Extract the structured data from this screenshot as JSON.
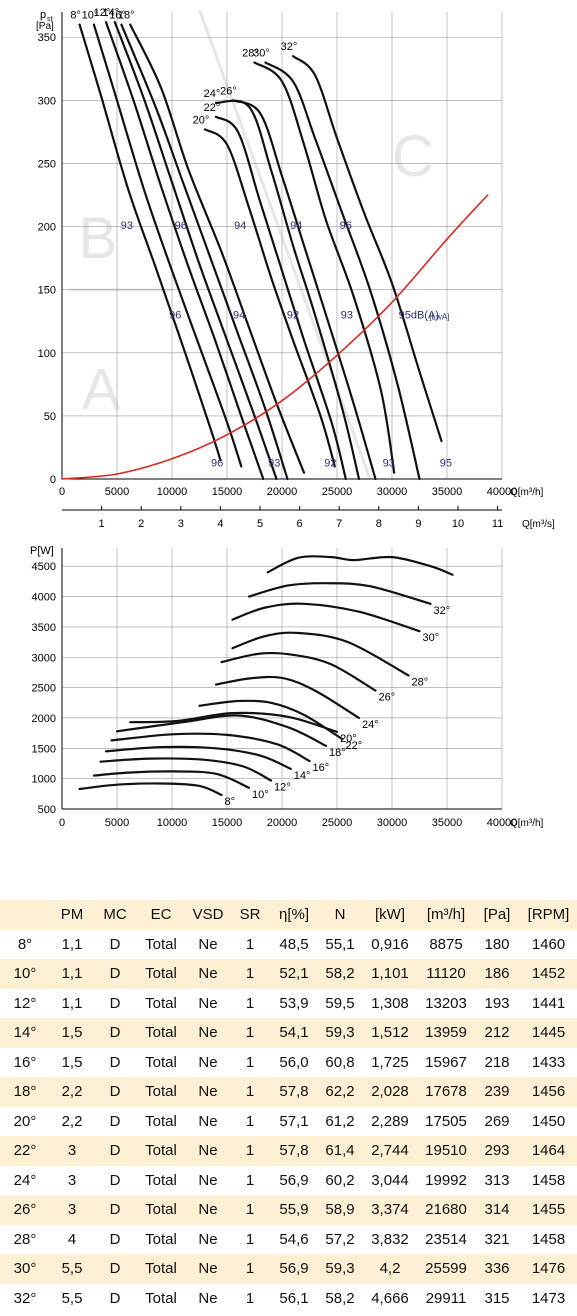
{
  "chart_data": [
    {
      "type": "line",
      "ylabel": "pst [Pa]",
      "ylabel_main": "p",
      "ylabel_sub": "st",
      "ylabel_unit": "[Pa]",
      "xlabel": "Q[m³/h]",
      "xlabel2": "Q[m³/s]",
      "xlim": [
        0,
        40000
      ],
      "ylim": [
        0,
        370
      ],
      "xticks": [
        0,
        5000,
        10000,
        15000,
        20000,
        25000,
        30000,
        35000,
        40000
      ],
      "yticks": [
        0,
        50,
        100,
        150,
        200,
        250,
        300,
        350
      ],
      "xticks2": [
        1,
        2,
        3,
        4,
        5,
        6,
        7,
        8,
        9,
        10,
        11
      ],
      "grid": true,
      "background_letters": [
        "A",
        "B",
        "C"
      ],
      "series": [
        {
          "name": "8°",
          "label": "8°",
          "x": [
            1600,
            3500,
            6000,
            8500,
            11000,
            13500,
            14400
          ],
          "y": [
            360,
            305,
            230,
            168,
            105,
            40,
            15
          ]
        },
        {
          "name": "10°",
          "label": "10°",
          "x": [
            2900,
            5000,
            7500,
            10000,
            12500,
            15000,
            16300
          ],
          "y": [
            360,
            300,
            228,
            165,
            105,
            45,
            10
          ]
        },
        {
          "name": "12°",
          "label": "12°",
          "x": [
            4000,
            6500,
            9000,
            11500,
            14000,
            16600,
            18300
          ],
          "y": [
            362,
            300,
            232,
            168,
            108,
            42,
            0
          ]
        },
        {
          "name": "14°",
          "label": "14°",
          "x": [
            4800,
            7500,
            10000,
            12500,
            15000,
            17500,
            19500
          ],
          "y": [
            362,
            300,
            235,
            170,
            110,
            50,
            0
          ]
        },
        {
          "name": "16°",
          "label": "16°",
          "x": [
            5400,
            8500,
            11000,
            13500,
            16000,
            18500,
            20500
          ],
          "y": [
            360,
            295,
            235,
            175,
            115,
            55,
            0
          ]
        },
        {
          "name": "18°",
          "label": "18°",
          "x": [
            6200,
            9000,
            11500,
            14500,
            17000,
            19500,
            22000
          ],
          "y": [
            360,
            310,
            245,
            180,
            120,
            60,
            5
          ]
        },
        {
          "name": "20°",
          "label": "20°",
          "x": [
            13000,
            15000,
            17000,
            19000,
            21000,
            23500,
            24800
          ],
          "y": [
            277,
            265,
            215,
            160,
            110,
            50,
            10
          ]
        },
        {
          "name": "22°",
          "label": "22°",
          "x": [
            14000,
            16000,
            18000,
            20000,
            22000,
            24500,
            25800
          ],
          "y": [
            287,
            275,
            220,
            165,
            110,
            45,
            0
          ]
        },
        {
          "name": "24°",
          "label": "24°",
          "x": [
            14000,
            17000,
            19000,
            21000,
            23000,
            25500,
            27000
          ],
          "y": [
            298,
            295,
            245,
            185,
            130,
            55,
            0
          ]
        },
        {
          "name": "26°",
          "label": "26°",
          "x": [
            15500,
            18000,
            20000,
            22000,
            24000,
            26500,
            28500
          ],
          "y": [
            300,
            290,
            240,
            185,
            130,
            60,
            0
          ]
        },
        {
          "name": "28°",
          "label": "28°",
          "x": [
            17500,
            20000,
            22000,
            24000,
            26500,
            29000,
            30200
          ],
          "y": [
            330,
            315,
            265,
            205,
            145,
            70,
            5
          ]
        },
        {
          "name": "30°",
          "label": "30°",
          "x": [
            18500,
            21000,
            23000,
            25500,
            28000,
            30500,
            32500
          ],
          "y": [
            330,
            315,
            270,
            210,
            150,
            75,
            0
          ]
        },
        {
          "name": "32°",
          "label": "32°",
          "x": [
            21000,
            23000,
            25000,
            27500,
            30000,
            32500,
            34500
          ],
          "y": [
            335,
            320,
            270,
            210,
            155,
            85,
            30
          ]
        },
        {
          "name": "system",
          "label": "",
          "x": [
            0,
            5000,
            10000,
            15000,
            20000,
            25000,
            30000,
            35000,
            38700
          ],
          "y": [
            0,
            4,
            16,
            35,
            62,
            98,
            140,
            190,
            225
          ]
        }
      ],
      "dba_labels_upper": [
        "93",
        "96",
        "94",
        "94",
        "96"
      ],
      "dba_labels_middle": [
        "96",
        "94",
        "92",
        "93",
        "95dB(A)",
        "[LwA]"
      ],
      "dba_labels_bottom": [
        "96",
        "93",
        "92",
        "93",
        "95"
      ]
    },
    {
      "type": "line",
      "ylabel": "P[W]",
      "xlabel": "Q[m³/h]",
      "xlim": [
        0,
        40000
      ],
      "ylim": [
        500,
        4800
      ],
      "xticks": [
        0,
        5000,
        10000,
        15000,
        20000,
        25000,
        30000,
        35000,
        40000
      ],
      "yticks": [
        500,
        1000,
        1500,
        2000,
        2500,
        3000,
        3500,
        4000,
        4500
      ],
      "grid": true,
      "series": [
        {
          "name": "8°",
          "label": "8°",
          "x": [
            1600,
            5000,
            9000,
            12500,
            14500
          ],
          "y": [
            830,
            900,
            920,
            880,
            730
          ]
        },
        {
          "name": "10°",
          "label": "10°",
          "x": [
            2900,
            6000,
            10000,
            14000,
            17000
          ],
          "y": [
            1050,
            1100,
            1120,
            1080,
            850
          ]
        },
        {
          "name": "12°",
          "label": "12°",
          "x": [
            3500,
            8000,
            13000,
            16500,
            19000
          ],
          "y": [
            1280,
            1330,
            1310,
            1200,
            970
          ]
        },
        {
          "name": "14°",
          "label": "14°",
          "x": [
            4000,
            9000,
            14000,
            18000,
            20800
          ],
          "y": [
            1450,
            1520,
            1500,
            1380,
            1160
          ]
        },
        {
          "name": "16°",
          "label": "16°",
          "x": [
            4500,
            10000,
            15000,
            19500,
            22500
          ],
          "y": [
            1630,
            1730,
            1720,
            1570,
            1290
          ]
        },
        {
          "name": "18°",
          "label": "18°",
          "x": [
            5000,
            11000,
            16000,
            20500,
            24000
          ],
          "y": [
            1780,
            1930,
            2040,
            1850,
            1540
          ]
        },
        {
          "name": "20°",
          "label": "20°",
          "x": [
            6200,
            10500,
            15500,
            20500,
            25000
          ],
          "y": [
            1930,
            1950,
            2080,
            2020,
            1770
          ]
        },
        {
          "name": "22°",
          "label": "22°",
          "x": [
            12500,
            16000,
            19000,
            22000,
            25500
          ],
          "y": [
            2200,
            2280,
            2250,
            2050,
            1650
          ]
        },
        {
          "name": "24°",
          "label": "24°",
          "x": [
            14000,
            17000,
            20000,
            23000,
            27000
          ],
          "y": [
            2550,
            2650,
            2660,
            2450,
            2000
          ]
        },
        {
          "name": "26°",
          "label": "26°",
          "x": [
            14500,
            18000,
            21000,
            24500,
            28500
          ],
          "y": [
            2920,
            3060,
            3040,
            2880,
            2450
          ]
        },
        {
          "name": "28°",
          "label": "28°",
          "x": [
            15500,
            18500,
            21500,
            26000,
            31500
          ],
          "y": [
            3150,
            3350,
            3400,
            3250,
            2700
          ]
        },
        {
          "name": "30°",
          "label": "30°",
          "x": [
            15500,
            18500,
            22000,
            27000,
            32500
          ],
          "y": [
            3620,
            3820,
            3880,
            3750,
            3430
          ]
        },
        {
          "name": "32°",
          "label": "32°",
          "x": [
            17000,
            20500,
            24000,
            28000,
            33500
          ],
          "y": [
            4000,
            4180,
            4220,
            4170,
            3880
          ]
        },
        {
          "name": "32°b",
          "label": "",
          "x": [
            18700,
            21500,
            24500,
            26500,
            30000,
            33500,
            35500
          ],
          "y": [
            4400,
            4640,
            4650,
            4600,
            4650,
            4500,
            4360
          ]
        }
      ]
    }
  ],
  "table": {
    "headers": [
      "",
      "PM",
      "MC",
      "EC",
      "VSD",
      "SR",
      "η[%]",
      "N",
      "[kW]",
      "[m³/h]",
      "[Pa]",
      "[RPM]"
    ],
    "rows": [
      [
        "8°",
        "1,1",
        "D",
        "Total",
        "Ne",
        "1",
        "48,5",
        "55,1",
        "0,916",
        "8875",
        "180",
        "1460"
      ],
      [
        "10°",
        "1,1",
        "D",
        "Total",
        "Ne",
        "1",
        "52,1",
        "58,2",
        "1,101",
        "11120",
        "186",
        "1452"
      ],
      [
        "12°",
        "1,1",
        "D",
        "Total",
        "Ne",
        "1",
        "53,9",
        "59,5",
        "1,308",
        "13203",
        "193",
        "1441"
      ],
      [
        "14°",
        "1,5",
        "D",
        "Total",
        "Ne",
        "1",
        "54,1",
        "59,3",
        "1,512",
        "13959",
        "212",
        "1445"
      ],
      [
        "16°",
        "1,5",
        "D",
        "Total",
        "Ne",
        "1",
        "56,0",
        "60,8",
        "1,725",
        "15967",
        "218",
        "1433"
      ],
      [
        "18°",
        "2,2",
        "D",
        "Total",
        "Ne",
        "1",
        "57,8",
        "62,2",
        "2,028",
        "17678",
        "239",
        "1456"
      ],
      [
        "20°",
        "2,2",
        "D",
        "Total",
        "Ne",
        "1",
        "57,1",
        "61,2",
        "2,289",
        "17505",
        "269",
        "1450"
      ],
      [
        "22°",
        "3",
        "D",
        "Total",
        "Ne",
        "1",
        "57,8",
        "61,4",
        "2,744",
        "19510",
        "293",
        "1464"
      ],
      [
        "24°",
        "3",
        "D",
        "Total",
        "Ne",
        "1",
        "56,9",
        "60,2",
        "3,044",
        "19992",
        "313",
        "1458"
      ],
      [
        "26°",
        "3",
        "D",
        "Total",
        "Ne",
        "1",
        "55,9",
        "58,9",
        "3,374",
        "21680",
        "314",
        "1455"
      ],
      [
        "28°",
        "4",
        "D",
        "Total",
        "Ne",
        "1",
        "54,6",
        "57,2",
        "3,832",
        "23514",
        "321",
        "1458"
      ],
      [
        "30°",
        "5,5",
        "D",
        "Total",
        "Ne",
        "1",
        "56,9",
        "59,3",
        "4,2",
        "25599",
        "336",
        "1476"
      ],
      [
        "32°",
        "5,5",
        "D",
        "Total",
        "Ne",
        "1",
        "56,1",
        "58,2",
        "4,666",
        "29911",
        "315",
        "1473"
      ]
    ]
  },
  "colors": {
    "curve": "#111111",
    "system_curve": "#d42a1e",
    "grid": "#9a9a9a",
    "dba_label": "#2b2f7a",
    "letters": "#e6e6e6",
    "row_shade": "#fdefd4"
  }
}
